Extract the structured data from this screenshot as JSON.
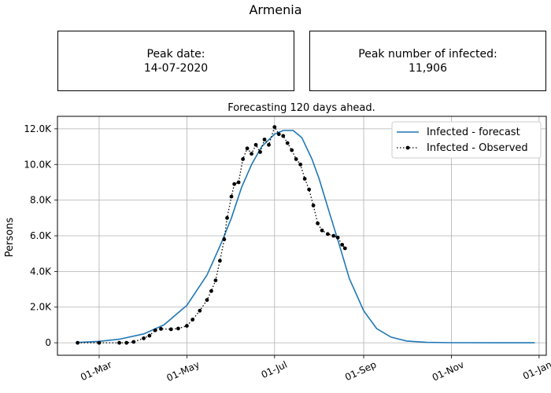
{
  "figure_title": "Armenia",
  "peak_date_box": {
    "label": "Peak date:",
    "value": "14-07-2020"
  },
  "peak_number_box": {
    "label": "Peak number of infected:",
    "value": "11,906"
  },
  "chart_data": {
    "type": "line",
    "title": "Forecasting 120 days ahead.",
    "xlabel": "",
    "ylabel": "Persons",
    "x_axis": {
      "type": "date",
      "range": [
        "2020-02-01",
        "2021-01-06"
      ],
      "ticks": [
        {
          "date": "2020-03-01",
          "label": "01-Mar"
        },
        {
          "date": "2020-05-01",
          "label": "01-May"
        },
        {
          "date": "2020-07-01",
          "label": "01-Jul"
        },
        {
          "date": "2020-09-01",
          "label": "01-Sep"
        },
        {
          "date": "2020-11-01",
          "label": "01-Nov"
        },
        {
          "date": "2021-01-01",
          "label": "01-Jan"
        }
      ]
    },
    "y_axis": {
      "range": [
        -700,
        12700
      ],
      "ticks": [
        {
          "value": 0,
          "label": "0"
        },
        {
          "value": 2000,
          "label": "2.0K"
        },
        {
          "value": 4000,
          "label": "4.0K"
        },
        {
          "value": 6000,
          "label": "6.0K"
        },
        {
          "value": 8000,
          "label": "8.0K"
        },
        {
          "value": 10000,
          "label": "10.0K"
        },
        {
          "value": 12000,
          "label": "12.0K"
        }
      ]
    },
    "grid": true,
    "legend_position": "top-right",
    "series": [
      {
        "name": "Infected - forecast",
        "style": "solid-line",
        "color": "#1f77b4",
        "points": [
          [
            "2020-02-15",
            20
          ],
          [
            "2020-03-01",
            80
          ],
          [
            "2020-03-15",
            200
          ],
          [
            "2020-04-01",
            500
          ],
          [
            "2020-04-15",
            1000
          ],
          [
            "2020-05-01",
            2100
          ],
          [
            "2020-05-15",
            3800
          ],
          [
            "2020-05-25",
            5600
          ],
          [
            "2020-06-01",
            7000
          ],
          [
            "2020-06-08",
            8700
          ],
          [
            "2020-06-15",
            10000
          ],
          [
            "2020-06-22",
            11000
          ],
          [
            "2020-07-01",
            11700
          ],
          [
            "2020-07-07",
            11906
          ],
          [
            "2020-07-14",
            11906
          ],
          [
            "2020-07-20",
            11500
          ],
          [
            "2020-07-27",
            10300
          ],
          [
            "2020-08-01",
            9200
          ],
          [
            "2020-08-07",
            7600
          ],
          [
            "2020-08-15",
            5500
          ],
          [
            "2020-08-22",
            3600
          ],
          [
            "2020-09-01",
            1800
          ],
          [
            "2020-09-10",
            800
          ],
          [
            "2020-09-20",
            320
          ],
          [
            "2020-10-01",
            100
          ],
          [
            "2020-10-15",
            25
          ],
          [
            "2020-11-01",
            5
          ],
          [
            "2020-12-29",
            0
          ]
        ]
      },
      {
        "name": "Infected - Observed",
        "style": "dotted-line-markers",
        "color": "#000000",
        "points": [
          [
            "2020-02-15",
            0
          ],
          [
            "2020-03-01",
            0
          ],
          [
            "2020-03-15",
            0
          ],
          [
            "2020-03-20",
            0
          ],
          [
            "2020-03-25",
            50
          ],
          [
            "2020-04-01",
            250
          ],
          [
            "2020-04-05",
            400
          ],
          [
            "2020-04-09",
            700
          ],
          [
            "2020-04-13",
            780
          ],
          [
            "2020-04-20",
            760
          ],
          [
            "2020-04-25",
            800
          ],
          [
            "2020-05-01",
            950
          ],
          [
            "2020-05-05",
            1300
          ],
          [
            "2020-05-10",
            1800
          ],
          [
            "2020-05-15",
            2400
          ],
          [
            "2020-05-18",
            2900
          ],
          [
            "2020-05-21",
            3500
          ],
          [
            "2020-05-24",
            4600
          ],
          [
            "2020-05-27",
            5800
          ],
          [
            "2020-05-29",
            7000
          ],
          [
            "2020-06-01",
            8200
          ],
          [
            "2020-06-03",
            8900
          ],
          [
            "2020-06-06",
            9000
          ],
          [
            "2020-06-09",
            10300
          ],
          [
            "2020-06-12",
            10900
          ],
          [
            "2020-06-15",
            10600
          ],
          [
            "2020-06-18",
            11100
          ],
          [
            "2020-06-21",
            10700
          ],
          [
            "2020-06-24",
            11400
          ],
          [
            "2020-06-27",
            11100
          ],
          [
            "2020-07-01",
            12100
          ],
          [
            "2020-07-04",
            11700
          ],
          [
            "2020-07-07",
            11600
          ],
          [
            "2020-07-10",
            11200
          ],
          [
            "2020-07-13",
            10800
          ],
          [
            "2020-07-16",
            10300
          ],
          [
            "2020-07-19",
            10000
          ],
          [
            "2020-07-22",
            9200
          ],
          [
            "2020-07-25",
            8600
          ],
          [
            "2020-07-28",
            7700
          ],
          [
            "2020-07-31",
            6700
          ],
          [
            "2020-08-03",
            6300
          ],
          [
            "2020-08-07",
            6100
          ],
          [
            "2020-08-11",
            6000
          ],
          [
            "2020-08-14",
            5900
          ],
          [
            "2020-08-17",
            5500
          ],
          [
            "2020-08-19",
            5300
          ]
        ]
      }
    ]
  }
}
